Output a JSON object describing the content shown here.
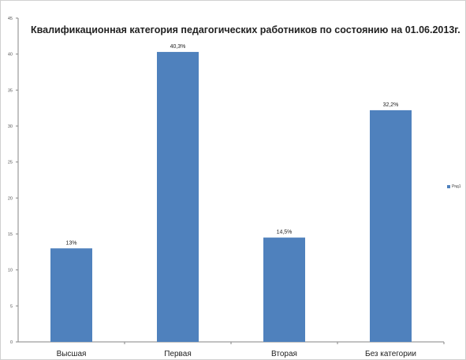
{
  "chart_data": {
    "type": "bar",
    "title": "Квалификационная категория педагогических работников по состоянию на 01.06.2013г.",
    "categories": [
      "Высшая",
      "Первая",
      "Вторая",
      "Без категории"
    ],
    "series": [
      {
        "name": "Ряд1",
        "values": [
          13,
          40.3,
          14.5,
          32.2
        ],
        "labels": [
          "13%",
          "40,3%",
          "14,5%",
          "32,2%"
        ]
      }
    ],
    "ylim": [
      0,
      45
    ],
    "yticks": [
      0,
      5,
      10,
      15,
      20,
      25,
      30,
      35,
      40,
      45
    ],
    "xlabel": "",
    "ylabel": "",
    "grid": false,
    "legend_position": "right",
    "colors": {
      "bar": "#4f81bd",
      "axis": "#868686",
      "text": "#222222"
    }
  }
}
